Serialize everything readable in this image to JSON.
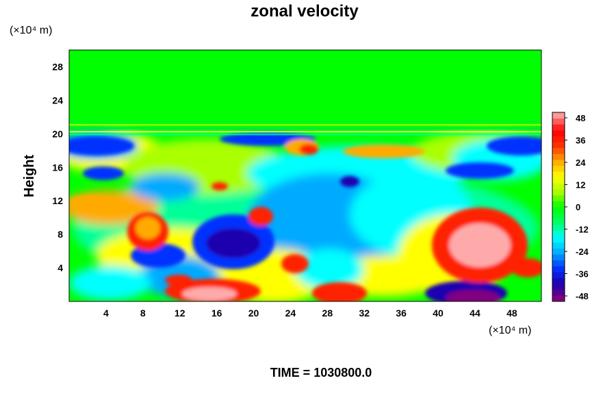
{
  "chart_data": {
    "type": "heatmap",
    "title": "zonal velocity",
    "xlabel": "",
    "ylabel": "Height",
    "x_units": "(×10⁴ m)",
    "y_units": "(×10⁴ m)",
    "x_ticks": [
      "4",
      "8",
      "12",
      "16",
      "20",
      "24",
      "28",
      "32",
      "36",
      "40",
      "44",
      "48"
    ],
    "y_ticks": [
      "4",
      "8",
      "12",
      "16",
      "20",
      "24",
      "28"
    ],
    "xlim": [
      0,
      51.2
    ],
    "ylim": [
      0,
      30
    ],
    "colorbar": {
      "ticks": [
        "48",
        "36",
        "24",
        "12",
        "0",
        "-12",
        "-24",
        "-36",
        "-48"
      ],
      "range": [
        -48,
        48
      ]
    },
    "colors": [
      "#800080",
      "#1a00b0",
      "#0033ff",
      "#00aaff",
      "#00ffff",
      "#00ff66",
      "#00ff00",
      "#aaff00",
      "#ffff00",
      "#ffaa00",
      "#ff3300",
      "#ff0000",
      "#ff9999"
    ],
    "grid": false,
    "field_features": [
      {
        "desc": "uniform near-zero flow above about 20",
        "y_range": [
          20.5,
          30
        ],
        "value": 0
      },
      {
        "desc": "strong westerly maximum",
        "x": 44,
        "y": 7,
        "value": 48
      },
      {
        "desc": "easterly minimum",
        "x": 17,
        "y": 7.5,
        "value": -40
      },
      {
        "desc": "easterly minimum near surface",
        "x": 44,
        "y": 0.5,
        "value": -48
      },
      {
        "desc": "westerly core near surface",
        "x": 16,
        "y": 1,
        "value": 40
      }
    ]
  },
  "footer": {
    "text": "TIME = 1030800.0"
  }
}
